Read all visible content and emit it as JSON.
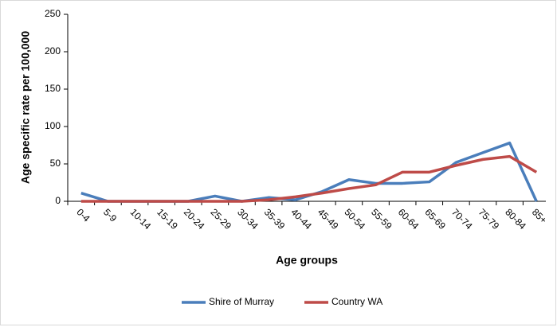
{
  "chart_data": {
    "type": "line",
    "x_label": "Age groups",
    "y_label": "Age specific rate per 100,000",
    "categories": [
      "0-4",
      "5-9",
      "10-14",
      "15-19",
      "20-24",
      "25-29",
      "30-34",
      "35-39",
      "40-44",
      "45-49",
      "50-54",
      "55-59",
      "60-64",
      "65-69",
      "70-74",
      "75-79",
      "80-84",
      "85+"
    ],
    "series": [
      {
        "name": "Shire of Murray",
        "color": "#4a7ebb",
        "values": [
          11,
          0,
          0,
          0,
          0,
          7,
          0,
          5,
          2,
          13,
          29,
          24,
          24,
          26,
          52,
          65,
          78,
          0
        ]
      },
      {
        "name": "Country WA",
        "color": "#be4b48",
        "values": [
          0,
          0,
          0,
          0,
          0,
          0,
          0,
          2,
          6,
          11,
          17,
          22,
          39,
          39,
          48,
          56,
          60,
          39
        ]
      }
    ],
    "ylim": [
      0,
      250
    ],
    "yticks": [
      0,
      50,
      100,
      150,
      200,
      250
    ],
    "grid": false,
    "legend": "bottom"
  }
}
